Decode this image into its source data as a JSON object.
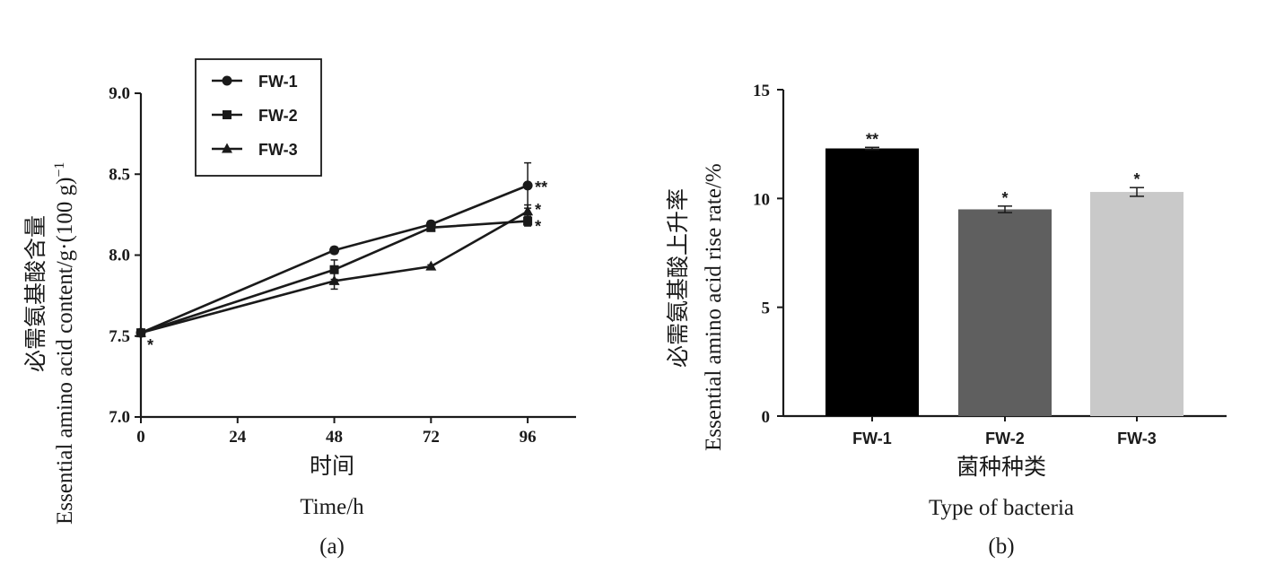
{
  "chart_data": [
    {
      "type": "line",
      "caption": "(a)",
      "xlabel_cn": "时间",
      "xlabel_en": "Time/h",
      "ylabel_cn": "必需氨基酸含量",
      "ylabel_en": "Essential amino acid content/g·(100 g)",
      "ylabel_sup": "−1",
      "x_ticks": [
        0,
        24,
        48,
        72,
        96
      ],
      "y_ticks": [
        "7.0",
        "7.5",
        "8.0",
        "8.5",
        "9.0"
      ],
      "xlim": [
        0,
        108
      ],
      "ylim": [
        7.0,
        9.0
      ],
      "series": [
        {
          "name": "FW-1",
          "marker": "circle",
          "x": [
            0,
            48,
            72,
            96
          ],
          "y": [
            7.52,
            8.03,
            8.19,
            8.43
          ],
          "err": [
            0,
            0.02,
            0.02,
            0.14
          ]
        },
        {
          "name": "FW-2",
          "marker": "square",
          "x": [
            0,
            48,
            72,
            96
          ],
          "y": [
            7.52,
            7.91,
            8.17,
            8.21
          ],
          "err": [
            0,
            0.06,
            0.02,
            0.03
          ]
        },
        {
          "name": "FW-3",
          "marker": "triangle",
          "x": [
            0,
            48,
            72,
            96
          ],
          "y": [
            7.52,
            7.84,
            7.93,
            8.27
          ],
          "err": [
            0,
            0.05,
            0.01,
            0.04
          ]
        }
      ],
      "annotations": [
        {
          "text": "*",
          "x": 0,
          "y": 7.52
        },
        {
          "text": "**",
          "x": 96,
          "y": 8.43
        },
        {
          "text": "*",
          "x": 96,
          "y": 8.27
        },
        {
          "text": "*",
          "x": 96,
          "y": 8.21
        }
      ],
      "legend": "top-left"
    },
    {
      "type": "bar",
      "caption": "(b)",
      "xlabel_cn": "菌种种类",
      "xlabel_en": "Type of bacteria",
      "ylabel_cn": "必需氨基酸上升率",
      "ylabel_en": "Essential amino acid rise rate/%",
      "categories": [
        "FW-1",
        "FW-2",
        "FW-3"
      ],
      "values": [
        12.3,
        9.5,
        10.3
      ],
      "errors": [
        0.05,
        0.15,
        0.2
      ],
      "significance": [
        "**",
        "*",
        "*"
      ],
      "colors": [
        "#000000",
        "#5f5f5f",
        "#c9c9c9"
      ],
      "y_ticks": [
        "0",
        "5",
        "10",
        "15"
      ],
      "ylim": [
        0,
        15
      ]
    }
  ]
}
